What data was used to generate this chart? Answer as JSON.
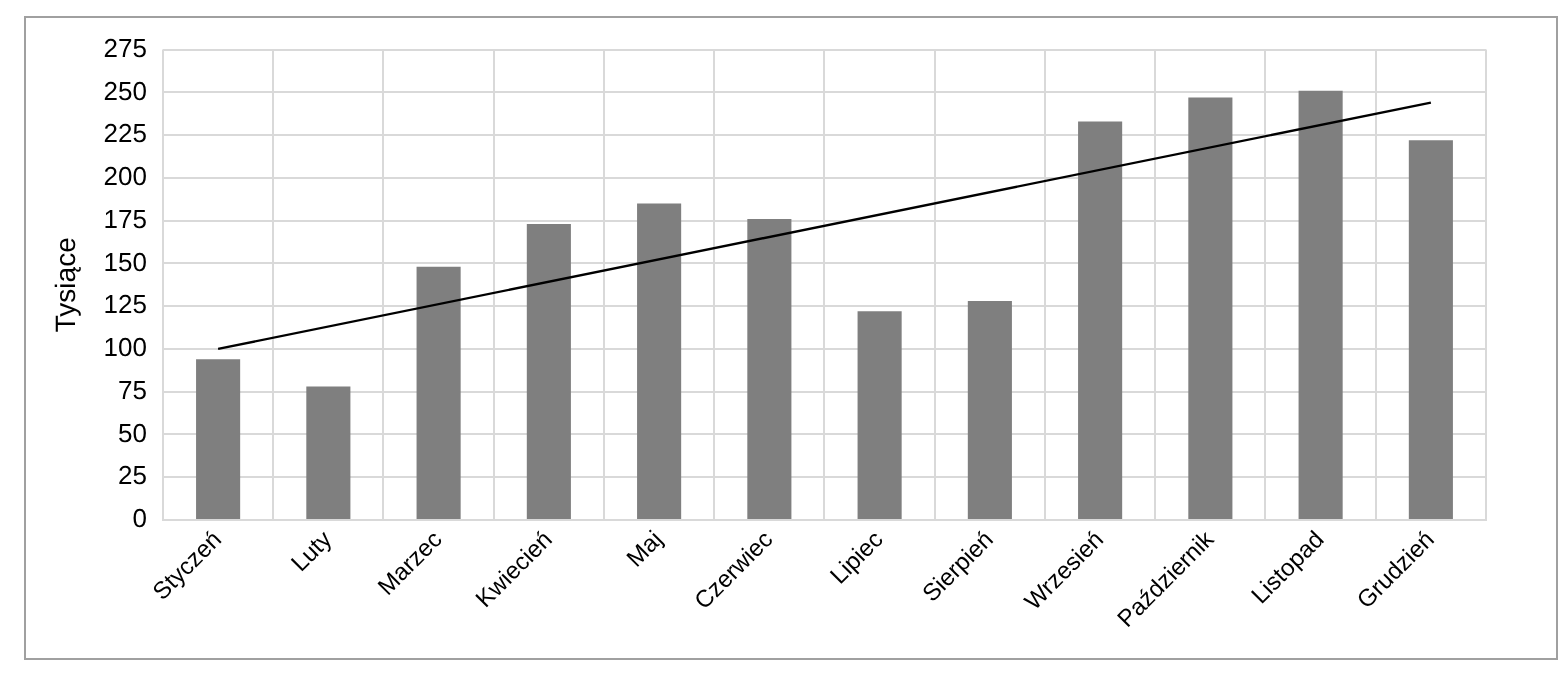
{
  "chart_data": {
    "type": "bar",
    "ylabel": "Tysiące",
    "categories": [
      "Styczeń",
      "Luty",
      "Marzec",
      "Kwiecień",
      "Maj",
      "Czerwiec",
      "Lipiec",
      "Sierpień",
      "Wrzesień",
      "Październik",
      "Listopad",
      "Grudzień"
    ],
    "series": [
      {
        "color": "#7f7f7f",
        "values": [
          94,
          78,
          148,
          173,
          185,
          176,
          122,
          128,
          233,
          247,
          251,
          222
        ]
      },
      {
        "type": "line",
        "color": "#000000",
        "values": [
          100,
          null,
          null,
          null,
          null,
          null,
          null,
          null,
          null,
          null,
          null,
          244
        ]
      }
    ],
    "ylim": [
      0,
      275
    ],
    "yticks": [
      0,
      25,
      50,
      75,
      100,
      125,
      150,
      175,
      200,
      225,
      250,
      275
    ],
    "grid": true,
    "legend": false,
    "marker": "none"
  }
}
